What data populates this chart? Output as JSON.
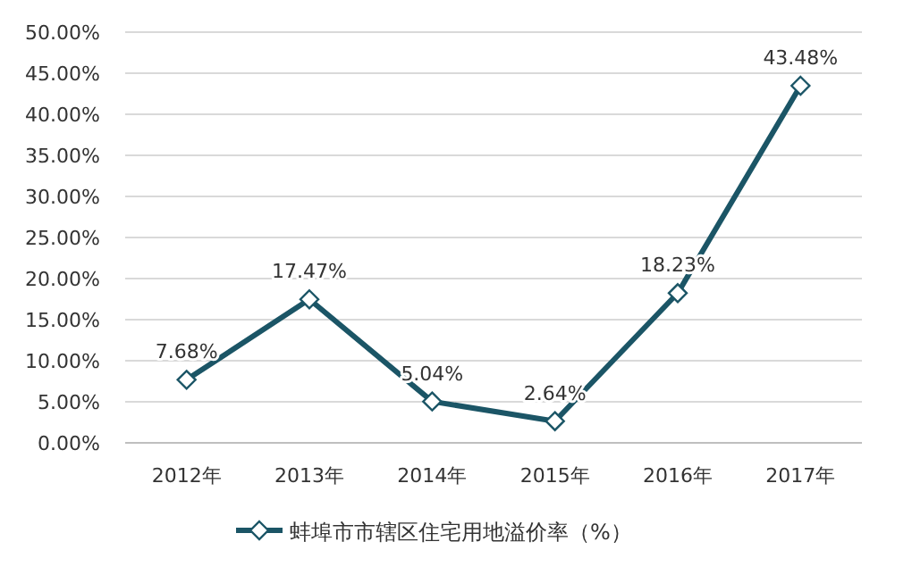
{
  "chart_data": {
    "type": "line",
    "categories": [
      "2012年",
      "2013年",
      "2014年",
      "2015年",
      "2016年",
      "2017年"
    ],
    "series": [
      {
        "name": "蚌埠市市辖区住宅用地溢价率（%）",
        "color": "#1b5566",
        "values": [
          7.68,
          17.47,
          5.04,
          2.64,
          18.23,
          43.48
        ],
        "value_labels": [
          "7.68%",
          "17.47%",
          "5.04%",
          "2.64%",
          "18.23%",
          "43.48%"
        ]
      }
    ],
    "ylim": [
      0,
      50
    ],
    "yticks": [
      {
        "value": 0,
        "label": "0.00%"
      },
      {
        "value": 5,
        "label": "5.00%"
      },
      {
        "value": 10,
        "label": "10.00%"
      },
      {
        "value": 15,
        "label": "15.00%"
      },
      {
        "value": 20,
        "label": "20.00%"
      },
      {
        "value": 25,
        "label": "25.00%"
      },
      {
        "value": 30,
        "label": "30.00%"
      },
      {
        "value": 35,
        "label": "35.00%"
      },
      {
        "value": 40,
        "label": "40.00%"
      },
      {
        "value": 45,
        "label": "45.00%"
      },
      {
        "value": 50,
        "label": "50.00%"
      }
    ],
    "grid": "y",
    "legend": "bottom",
    "marker": "diamond",
    "line_style": "solid"
  }
}
